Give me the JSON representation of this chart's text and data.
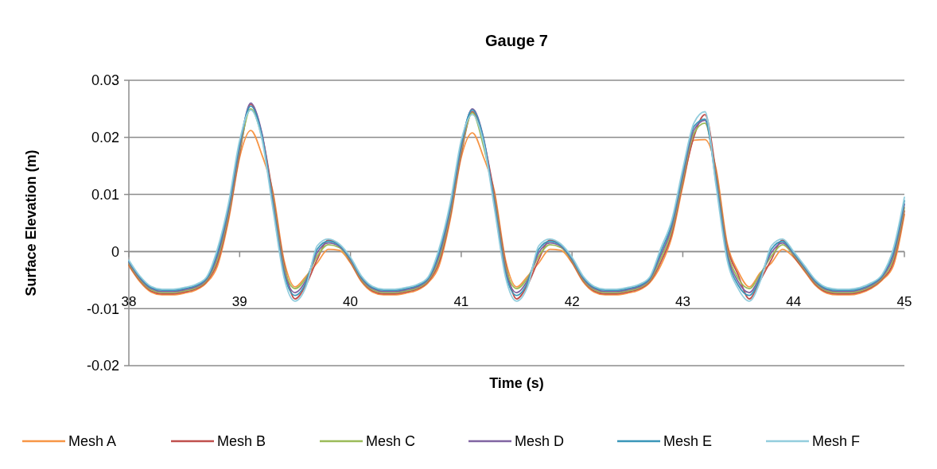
{
  "chart_data": {
    "type": "line",
    "title": "Gauge 7",
    "xlabel": "Time (s)",
    "ylabel": "Surface Elevation (m)",
    "xlim": [
      38,
      45
    ],
    "xticks": [
      38,
      39,
      40,
      41,
      42,
      43,
      44,
      45
    ],
    "ylim": [
      -0.02,
      0.03
    ],
    "yticks": [
      -0.02,
      -0.01,
      0,
      0.01,
      0.02,
      0.03
    ],
    "grid": "y",
    "legend": "bottom",
    "marker": "none",
    "line_style": "solid",
    "x": [
      38.0,
      38.1,
      38.2,
      38.3,
      38.4,
      38.5,
      38.6,
      38.7,
      38.8,
      38.9,
      39.0,
      39.1,
      39.2,
      39.3,
      39.4,
      39.5,
      39.6,
      39.7,
      39.8,
      39.9,
      40.0,
      40.1,
      40.2,
      40.3,
      40.4,
      40.5,
      40.6,
      40.7,
      40.8,
      40.9,
      41.0,
      41.1,
      41.2,
      41.3,
      41.4,
      41.5,
      41.6,
      41.7,
      41.8,
      41.9,
      42.0,
      42.1,
      42.2,
      42.3,
      42.4,
      42.5,
      42.6,
      42.7,
      42.8,
      42.9,
      43.0,
      43.1,
      43.2,
      43.3,
      43.4,
      43.5,
      43.6,
      43.7,
      43.8,
      43.9,
      44.0,
      44.1,
      44.2,
      44.3,
      44.4,
      44.5,
      44.6,
      44.7,
      44.8,
      44.9,
      45.0
    ],
    "series": [
      {
        "name": "Mesh A",
        "color": "#f79646",
        "values": [
          -0.0025,
          -0.0053,
          -0.0071,
          -0.0076,
          -0.0076,
          -0.0073,
          -0.0068,
          -0.0055,
          -0.0025,
          0.0055,
          0.0165,
          0.0212,
          0.017,
          0.0105,
          -0.0015,
          -0.0062,
          -0.0043,
          -0.002,
          0.0004,
          0.0002,
          -0.002,
          -0.0053,
          -0.0071,
          -0.0076,
          -0.0076,
          -0.0073,
          -0.0068,
          -0.0055,
          -0.0025,
          0.0055,
          0.0165,
          0.0208,
          0.0166,
          0.0105,
          -0.0015,
          -0.0062,
          -0.0043,
          -0.002,
          0.0004,
          0.0002,
          -0.002,
          -0.0053,
          -0.0071,
          -0.0076,
          -0.0076,
          -0.0073,
          -0.0068,
          -0.0055,
          -0.0025,
          0.0025,
          0.0115,
          0.0195,
          0.0196,
          0.0145,
          0.0015,
          -0.0035,
          -0.0062,
          -0.0037,
          -0.002,
          0.0004,
          -0.001,
          -0.0035,
          -0.006,
          -0.0073,
          -0.0076,
          -0.0076,
          -0.0073,
          -0.0065,
          -0.005,
          -0.0025,
          0.0065
        ]
      },
      {
        "name": "Mesh B",
        "color": "#c0504d",
        "values": [
          -0.0023,
          -0.0051,
          -0.0069,
          -0.0074,
          -0.0074,
          -0.0071,
          -0.0066,
          -0.0053,
          -0.0019,
          0.0061,
          0.0171,
          0.0258,
          0.0206,
          0.0099,
          -0.0021,
          -0.0083,
          -0.0058,
          -0.0014,
          0.002,
          0.0012,
          -0.0018,
          -0.0051,
          -0.0069,
          -0.0074,
          -0.0074,
          -0.0071,
          -0.0066,
          -0.0053,
          -0.0019,
          0.0061,
          0.0171,
          0.0245,
          0.0196,
          0.0099,
          -0.0021,
          -0.0083,
          -0.0058,
          -0.0014,
          0.002,
          0.0012,
          -0.0018,
          -0.0051,
          -0.0069,
          -0.0074,
          -0.0074,
          -0.0071,
          -0.0066,
          -0.0053,
          -0.0019,
          0.0031,
          0.0121,
          0.0201,
          0.024,
          0.0139,
          0.0009,
          -0.0041,
          -0.0083,
          -0.005,
          -0.0014,
          0.002,
          -0.0008,
          -0.0033,
          -0.0058,
          -0.0071,
          -0.0074,
          -0.0074,
          -0.0071,
          -0.0063,
          -0.0048,
          -0.0019,
          0.0071
        ]
      },
      {
        "name": "Mesh C",
        "color": "#9bbb59",
        "values": [
          -0.0021,
          -0.0049,
          -0.0067,
          -0.0072,
          -0.0072,
          -0.0069,
          -0.0064,
          -0.0051,
          -0.0013,
          0.0067,
          0.0177,
          0.025,
          0.02,
          0.0093,
          -0.0027,
          -0.0065,
          -0.0046,
          -0.0008,
          0.0012,
          0.0007,
          -0.0016,
          -0.0049,
          -0.0067,
          -0.0072,
          -0.0072,
          -0.0069,
          -0.0064,
          -0.0051,
          -0.0013,
          0.0067,
          0.0177,
          0.0243,
          0.0185,
          0.0093,
          -0.0027,
          -0.0065,
          -0.0046,
          -0.0008,
          0.0012,
          0.0007,
          -0.0016,
          -0.0049,
          -0.0067,
          -0.0072,
          -0.0072,
          -0.0069,
          -0.0064,
          -0.0051,
          -0.0013,
          0.0037,
          0.0127,
          0.0207,
          0.0225,
          0.0133,
          0.0003,
          -0.0047,
          -0.0065,
          -0.0039,
          -0.0008,
          0.0012,
          -0.0006,
          -0.0031,
          -0.0056,
          -0.0069,
          -0.0072,
          -0.0072,
          -0.0069,
          -0.0061,
          -0.0046,
          -0.0013,
          0.0077
        ]
      },
      {
        "name": "Mesh D",
        "color": "#8064a2",
        "values": [
          -0.0019,
          -0.0047,
          -0.0065,
          -0.007,
          -0.007,
          -0.0067,
          -0.0062,
          -0.0049,
          -0.0007,
          0.0073,
          0.0183,
          0.026,
          0.0208,
          0.0087,
          -0.0033,
          -0.0072,
          -0.005,
          -0.0002,
          0.0015,
          0.0009,
          -0.0014,
          -0.0047,
          -0.0065,
          -0.007,
          -0.007,
          -0.0067,
          -0.0062,
          -0.0049,
          -0.0007,
          0.0073,
          0.0183,
          0.025,
          0.02,
          0.0087,
          -0.0033,
          -0.0072,
          -0.005,
          -0.0002,
          0.0015,
          0.0009,
          -0.0014,
          -0.0047,
          -0.0065,
          -0.007,
          -0.007,
          -0.0067,
          -0.0062,
          -0.0049,
          -0.0007,
          0.0043,
          0.0133,
          0.0213,
          0.023,
          0.0127,
          -0.0003,
          -0.0053,
          -0.0072,
          -0.0043,
          -0.0002,
          0.0015,
          -0.0004,
          -0.0029,
          -0.0054,
          -0.0067,
          -0.007,
          -0.007,
          -0.0067,
          -0.0059,
          -0.0044,
          -0.0007,
          0.0083
        ]
      },
      {
        "name": "Mesh E",
        "color": "#3a96b9",
        "values": [
          -0.0017,
          -0.0045,
          -0.0063,
          -0.0068,
          -0.0068,
          -0.0065,
          -0.006,
          -0.0047,
          -0.0001,
          0.0079,
          0.0189,
          0.0255,
          0.0204,
          0.0081,
          -0.0039,
          -0.0077,
          -0.0054,
          0.0004,
          0.0018,
          0.0011,
          -0.0012,
          -0.0045,
          -0.0063,
          -0.0068,
          -0.0068,
          -0.0065,
          -0.006,
          -0.0047,
          -0.0001,
          0.0079,
          0.0189,
          0.0248,
          0.0198,
          0.0081,
          -0.0039,
          -0.0077,
          -0.0054,
          0.0004,
          0.0018,
          0.0011,
          -0.0012,
          -0.0045,
          -0.0063,
          -0.0068,
          -0.0068,
          -0.0065,
          -0.006,
          -0.0047,
          -0.0001,
          0.0049,
          0.0139,
          0.0219,
          0.0232,
          0.0121,
          -0.0009,
          -0.0059,
          -0.0077,
          -0.0046,
          0.0004,
          0.0018,
          -0.0002,
          -0.0027,
          -0.0052,
          -0.0065,
          -0.0068,
          -0.0068,
          -0.0065,
          -0.0057,
          -0.0042,
          -0.0001,
          0.0089
        ]
      },
      {
        "name": "Mesh F",
        "color": "#93cddd",
        "values": [
          -0.0015,
          -0.0043,
          -0.0061,
          -0.0066,
          -0.0066,
          -0.0063,
          -0.0058,
          -0.0045,
          0.0005,
          0.0085,
          0.0195,
          0.0248,
          0.0198,
          0.0075,
          -0.0045,
          -0.0087,
          -0.0061,
          0.001,
          0.0022,
          0.0013,
          -0.001,
          -0.0043,
          -0.0061,
          -0.0066,
          -0.0066,
          -0.0063,
          -0.0058,
          -0.0045,
          0.0005,
          0.0085,
          0.0195,
          0.024,
          0.0192,
          0.0075,
          -0.0045,
          -0.0087,
          -0.0061,
          0.001,
          0.0022,
          0.0013,
          -0.001,
          -0.0043,
          -0.0061,
          -0.0066,
          -0.0066,
          -0.0063,
          -0.0058,
          -0.0045,
          0.0005,
          0.0055,
          0.0145,
          0.0225,
          0.0245,
          0.0115,
          -0.0015,
          -0.0065,
          -0.0087,
          -0.0052,
          0.001,
          0.0022,
          0.0,
          -0.0025,
          -0.005,
          -0.0063,
          -0.0066,
          -0.0066,
          -0.0063,
          -0.0055,
          -0.004,
          0.0005,
          0.0095
        ]
      }
    ]
  }
}
